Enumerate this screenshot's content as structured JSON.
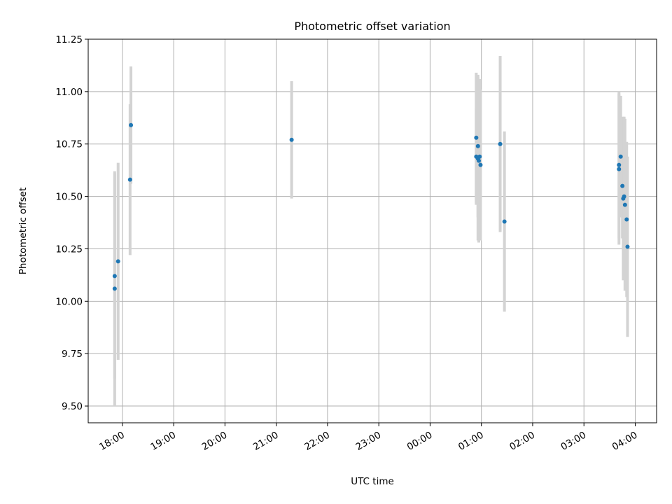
{
  "chart_data": {
    "type": "scatter",
    "title": "Photometric offset variation",
    "xlabel": "UTC time",
    "ylabel": "Photometric offset",
    "x_start": "2023-01-01T17:20",
    "x_end": "2023-01-02T04:25",
    "xlim": [
      "17:20",
      "04:25"
    ],
    "ylim": [
      9.42,
      11.25
    ],
    "grid": true,
    "x_ticks": [
      "18:00",
      "19:00",
      "20:00",
      "21:00",
      "22:00",
      "23:00",
      "00:00",
      "01:00",
      "02:00",
      "03:00",
      "04:00"
    ],
    "y_ticks": [
      "9.50",
      "9.75",
      "10.00",
      "10.25",
      "10.50",
      "10.75",
      "11.00",
      "11.25"
    ],
    "marker_color": "#1f77b4",
    "errorbar_color": "#d3d3d3",
    "points": [
      {
        "x": "17:51",
        "y": 10.12,
        "err": 0.49
      },
      {
        "x": "17:51",
        "y": 10.06,
        "err": 0.56
      },
      {
        "x": "17:55",
        "y": 10.19,
        "err": 0.47
      },
      {
        "x": "18:09",
        "y": 10.58,
        "err": 0.36
      },
      {
        "x": "18:10",
        "y": 10.84,
        "err": 0.28
      },
      {
        "x": "21:18",
        "y": 10.77,
        "err": 0.28
      },
      {
        "x": "00:54",
        "y": 10.78,
        "err": 0.31
      },
      {
        "x": "00:54",
        "y": 10.69,
        "err": 0.23
      },
      {
        "x": "00:56",
        "y": 10.74,
        "err": 0.34
      },
      {
        "x": "00:56",
        "y": 10.68,
        "err": 0.39
      },
      {
        "x": "00:57",
        "y": 10.67,
        "err": 0.39
      },
      {
        "x": "00:58",
        "y": 10.69,
        "err": 0.37
      },
      {
        "x": "00:59",
        "y": 10.65,
        "err": 0.36
      },
      {
        "x": "01:22",
        "y": 10.75,
        "err": 0.42
      },
      {
        "x": "01:27",
        "y": 10.38,
        "err": 0.43
      },
      {
        "x": "03:41",
        "y": 10.65,
        "err": 0.35
      },
      {
        "x": "03:41",
        "y": 10.63,
        "err": 0.36
      },
      {
        "x": "03:43",
        "y": 10.69,
        "err": 0.29
      },
      {
        "x": "03:45",
        "y": 10.55,
        "err": 0.25
      },
      {
        "x": "03:46",
        "y": 10.49,
        "err": 0.39
      },
      {
        "x": "03:47",
        "y": 10.5,
        "err": 0.38
      },
      {
        "x": "03:48",
        "y": 10.46,
        "err": 0.41
      },
      {
        "x": "03:50",
        "y": 10.39,
        "err": 0.37
      },
      {
        "x": "03:51",
        "y": 10.26,
        "err": 0.43
      }
    ]
  }
}
